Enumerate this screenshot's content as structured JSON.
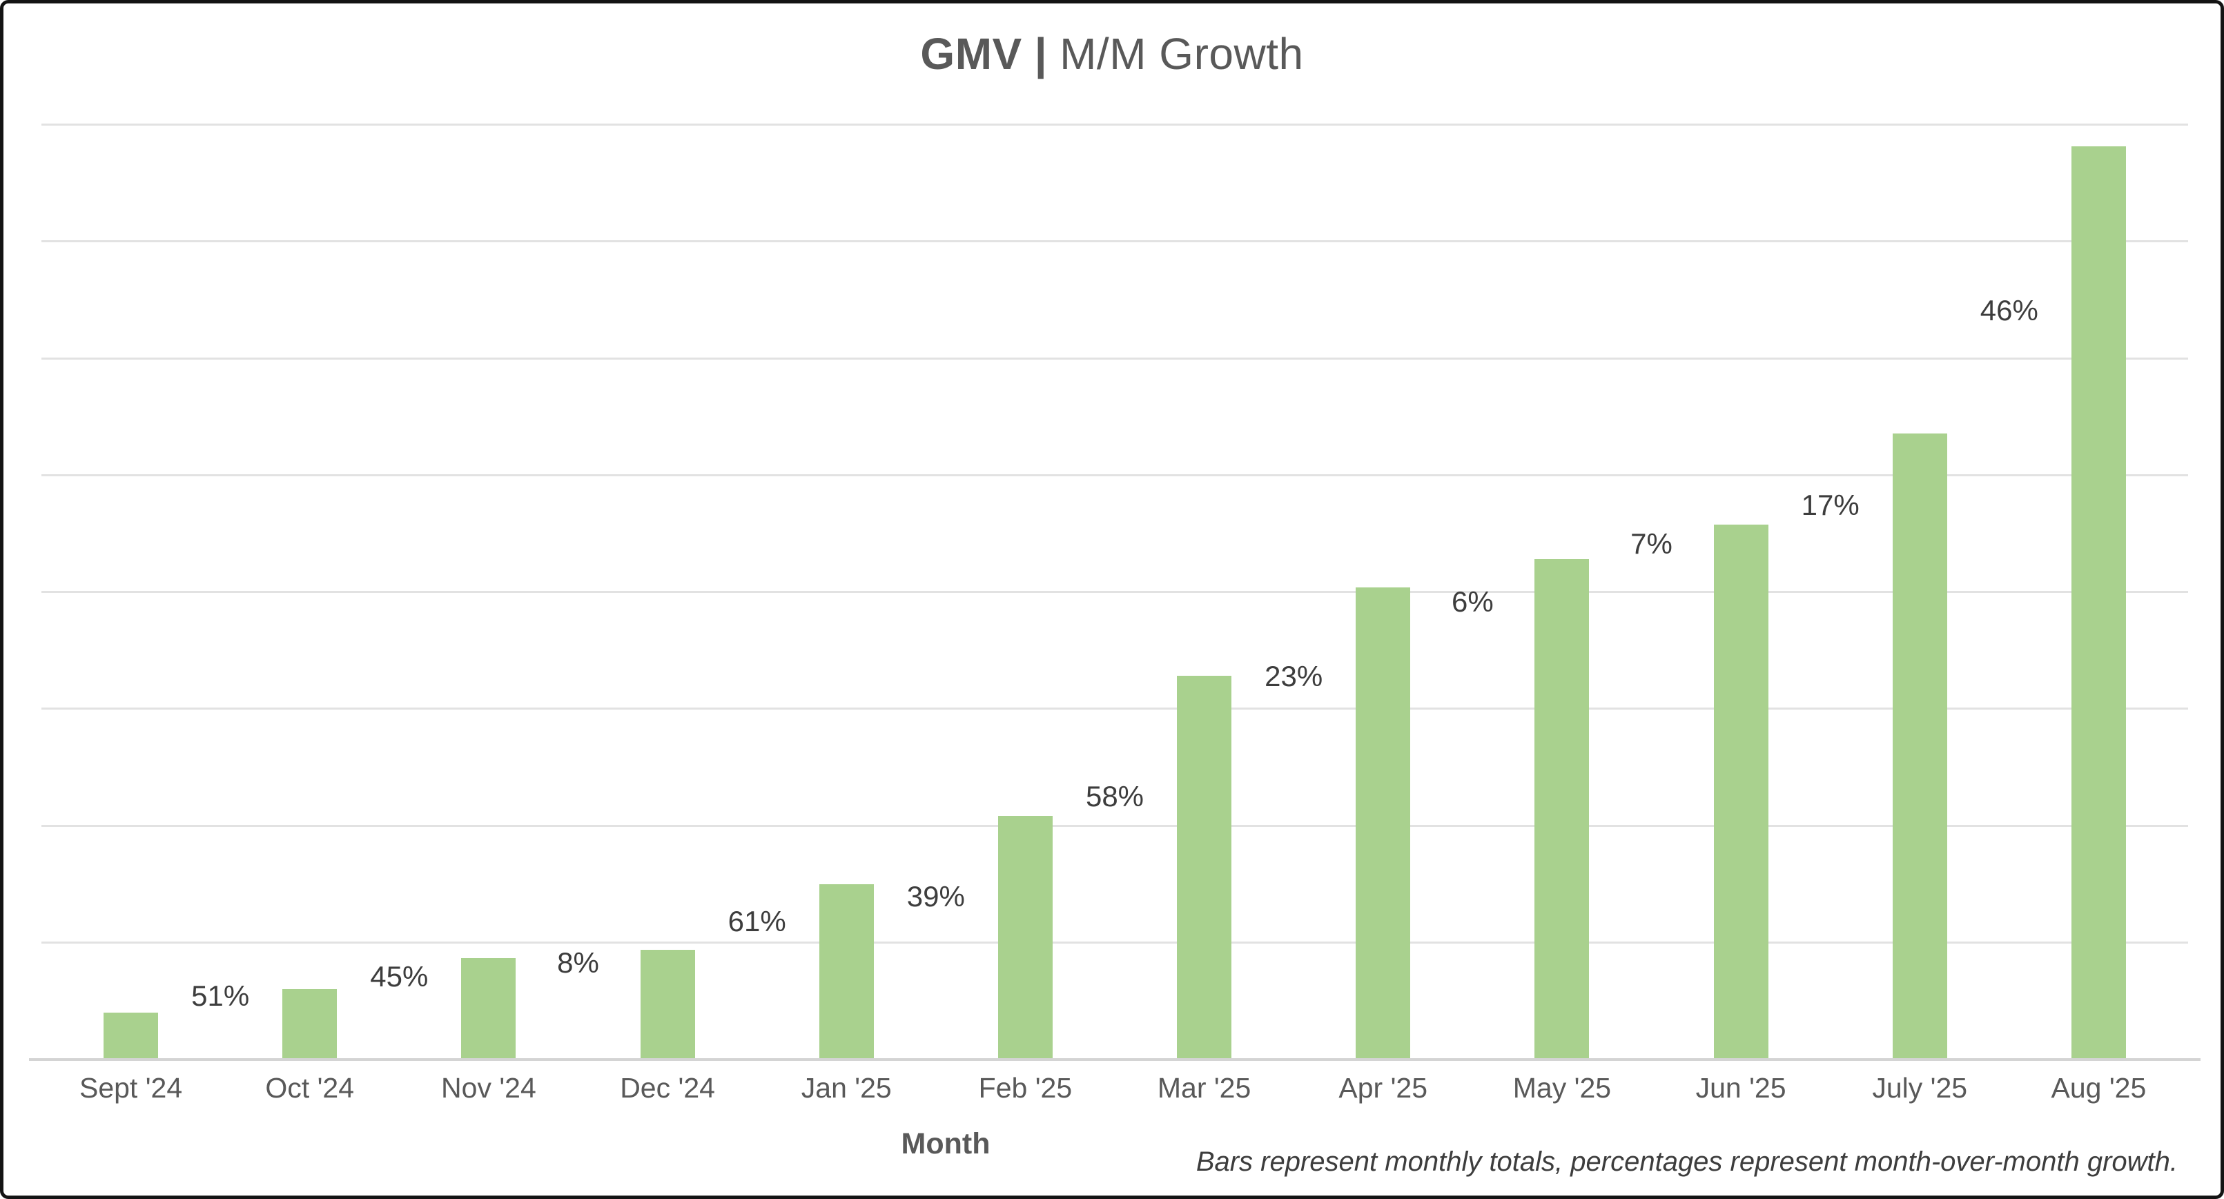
{
  "title": {
    "text_bold": "GMV",
    "separator": "|",
    "text_regular": "M/M Growth"
  },
  "axes": {
    "x_title": "Month"
  },
  "footnote": "Bars represent monthly totals, percentages represent month-over-month growth.",
  "colors": {
    "bar": "#A9D18E",
    "gridline": "#e2e2e2",
    "axis_line": "#d4d4d4",
    "title_text": "#595959",
    "tick_text": "#595959",
    "label_text": "#3d3d3d",
    "border": "#141414",
    "background": "#ffffff"
  },
  "chart_data": {
    "type": "bar",
    "title": "GMV | M/M Growth",
    "xlabel": "Month",
    "ylabel": "",
    "categories": [
      "Sept '24",
      "Oct '24",
      "Nov '24",
      "Dec '24",
      "Jan '25",
      "Feb '25",
      "Mar '25",
      "Apr '25",
      "May '25",
      "Jun '25",
      "July '25",
      "Aug '25"
    ],
    "values": [
      100,
      151,
      219,
      237,
      382,
      531,
      839,
      1032,
      1094,
      1171,
      1370,
      2000
    ],
    "values_note": "Y axis has no tick labels in the chart; values are relative estimates (Sept '24 = 100) read from bar heights, consistent with the printed month-over-month growth percentages",
    "ylim": [
      0,
      2050
    ],
    "gridline_count": 8,
    "grid": "horizontal-only",
    "legend": "none",
    "growth_labels": [
      {
        "label": "51%",
        "from": "Sept '24",
        "to": "Oct '24"
      },
      {
        "label": "45%",
        "from": "Oct '24",
        "to": "Nov '24"
      },
      {
        "label": "8%",
        "from": "Nov '24",
        "to": "Dec '24"
      },
      {
        "label": "61%",
        "from": "Dec '24",
        "to": "Jan '25"
      },
      {
        "label": "39%",
        "from": "Jan '25",
        "to": "Feb '25"
      },
      {
        "label": "58%",
        "from": "Feb '25",
        "to": "Mar '25"
      },
      {
        "label": "23%",
        "from": "Mar '25",
        "to": "Apr '25"
      },
      {
        "label": "6%",
        "from": "Apr '25",
        "to": "May '25"
      },
      {
        "label": "7%",
        "from": "May '25",
        "to": "Jun '25"
      },
      {
        "label": "17%",
        "from": "Jun '25",
        "to": "July '25"
      },
      {
        "label": "46%",
        "from": "July '25",
        "to": "Aug '25"
      }
    ],
    "annotation": "Bars represent monthly totals, percentages represent month-over-month growth."
  }
}
